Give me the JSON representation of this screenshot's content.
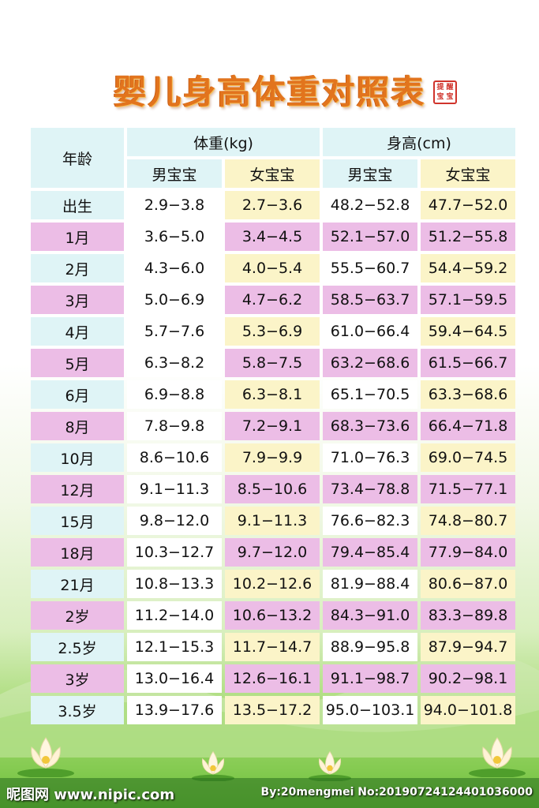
{
  "title": "婴儿身高体重对照表",
  "seal": [
    "提",
    "醒",
    "宝",
    "宝"
  ],
  "header": {
    "age": "年龄",
    "weight": "体重(kg)",
    "height": "身高(cm)",
    "boy": "男宝宝",
    "girl": "女宝宝"
  },
  "rows": [
    {
      "age": "出生",
      "wb": "2.9−3.8",
      "wg": "2.7−3.6",
      "hb": "48.2−52.8",
      "hg": "47.7−52.0"
    },
    {
      "age": "1月",
      "wb": "3.6−5.0",
      "wg": "3.4−4.5",
      "hb": "52.1−57.0",
      "hg": "51.2−55.8"
    },
    {
      "age": "2月",
      "wb": "4.3−6.0",
      "wg": "4.0−5.4",
      "hb": "55.5−60.7",
      "hg": "54.4−59.2"
    },
    {
      "age": "3月",
      "wb": "5.0−6.9",
      "wg": "4.7−6.2",
      "hb": "58.5−63.7",
      "hg": "57.1−59.5"
    },
    {
      "age": "4月",
      "wb": "5.7−7.6",
      "wg": "5.3−6.9",
      "hb": "61.0−66.4",
      "hg": "59.4−64.5"
    },
    {
      "age": "5月",
      "wb": "6.3−8.2",
      "wg": "5.8−7.5",
      "hb": "63.2−68.6",
      "hg": "61.5−66.7"
    },
    {
      "age": "6月",
      "wb": "6.9−8.8",
      "wg": "6.3−8.1",
      "hb": "65.1−70.5",
      "hg": "63.3−68.6"
    },
    {
      "age": "8月",
      "wb": "7.8−9.8",
      "wg": "7.2−9.1",
      "hb": "68.3−73.6",
      "hg": "66.4−71.8"
    },
    {
      "age": "10月",
      "wb": "8.6−10.6",
      "wg": "7.9−9.9",
      "hb": "71.0−76.3",
      "hg": "69.0−74.5"
    },
    {
      "age": "12月",
      "wb": "9.1−11.3",
      "wg": "8.5−10.6",
      "hb": "73.4−78.8",
      "hg": "71.5−77.1"
    },
    {
      "age": "15月",
      "wb": "9.8−12.0",
      "wg": "9.1−11.3",
      "hb": "76.6−82.3",
      "hg": "74.8−80.7"
    },
    {
      "age": "18月",
      "wb": "10.3−12.7",
      "wg": "9.7−12.0",
      "hb": "79.4−85.4",
      "hg": "77.9−84.0"
    },
    {
      "age": "21月",
      "wb": "10.8−13.3",
      "wg": "10.2−12.6",
      "hb": "81.9−88.4",
      "hg": "80.6−87.0"
    },
    {
      "age": "2岁",
      "wb": "11.2−14.0",
      "wg": "10.6−13.2",
      "hb": "84.3−91.0",
      "hg": "83.3−89.8"
    },
    {
      "age": "2.5岁",
      "wb": "12.1−15.3",
      "wg": "11.7−14.7",
      "hb": "88.9−95.8",
      "hg": "87.9−94.7"
    },
    {
      "age": "3岁",
      "wb": "13.0−16.4",
      "wg": "12.6−16.1",
      "hb": "91.1−98.7",
      "hg": "90.2−98.1"
    },
    {
      "age": "3.5岁",
      "wb": "13.9−17.6",
      "wg": "13.5−17.2",
      "hb": "95.0−103.1",
      "hg": "94.0−101.8"
    }
  ],
  "watermark": {
    "left": "昵图网 www.nipic.com",
    "right": "By:20mengmei No:20190724124401036000"
  },
  "colors": {
    "title": "#e2741d",
    "header_bg": "#dff4f6",
    "girl_bg": "#fbf4c8",
    "pink_row": "#ecbde6",
    "seal": "#d0342c"
  }
}
